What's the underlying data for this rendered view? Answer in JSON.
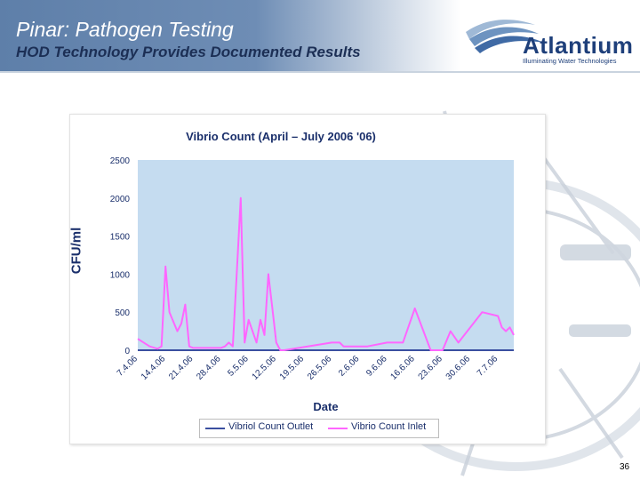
{
  "header": {
    "title": "Pinar: Pathogen Testing",
    "subtitle": "HOD Technology Provides Documented Results"
  },
  "logo": {
    "name": "Atlantium",
    "tagline": "Illuminating Water Technologies"
  },
  "page_number": "36",
  "colors": {
    "outlet": "#3a4fa0",
    "inlet": "#ff66ff",
    "plot_bg": "#c5dcf0",
    "header": "#5e7fa9"
  },
  "chart_data": {
    "type": "line",
    "title": "Vibrio Count (April – July 2006 '06)",
    "xlabel": "Date",
    "ylabel": "CFU/ml",
    "ylim": [
      0,
      2500
    ],
    "yticks": [
      0,
      500,
      1000,
      1500,
      2000,
      2500
    ],
    "grid": false,
    "legend_position": "bottom",
    "xticks": [
      "7.4.06",
      "14.4.06",
      "21.4.06",
      "28.4.06",
      "5.5.06",
      "12.5.06",
      "19.5.06",
      "26.5.06",
      "2.6.06",
      "9.6.06",
      "16.6.06",
      "23.6.06",
      "30.6.06",
      "7.7.06"
    ],
    "x": [
      "7.4.06",
      "10.4.06",
      "12.4.06",
      "13.4.06",
      "14.4.06",
      "15.4.06",
      "17.4.06",
      "18.4.06",
      "19.4.06",
      "20.4.06",
      "21.4.06",
      "28.4.06",
      "29.4.06",
      "30.4.06",
      "1.5.06",
      "2.5.06",
      "3.5.06",
      "4.5.06",
      "5.5.06",
      "6.5.06",
      "7.5.06",
      "8.5.06",
      "9.5.06",
      "10.5.06",
      "11.5.06",
      "12.5.06",
      "13.5.06",
      "14.5.06",
      "26.5.06",
      "27.5.06",
      "28.5.06",
      "29.5.06",
      "1.6.06",
      "2.6.06",
      "3.6.06",
      "4.6.06",
      "9.6.06",
      "13.6.06",
      "16.6.06",
      "20.6.06",
      "23.6.06",
      "25.6.06",
      "27.6.06",
      "3.7.06",
      "7.7.06",
      "8.7.06",
      "9.7.06",
      "10.7.06",
      "11.7.06"
    ],
    "series": [
      {
        "name": "Vibriol Count Outlet",
        "values": [
          0,
          0,
          0,
          0,
          0,
          0,
          0,
          0,
          0,
          0,
          0,
          0,
          0,
          0,
          0,
          0,
          0,
          0,
          0,
          0,
          0,
          0,
          0,
          0,
          0,
          0,
          0,
          0,
          0,
          0,
          0,
          0,
          0,
          0,
          0,
          0,
          0,
          0,
          0,
          0,
          0,
          0,
          0,
          0,
          0,
          0,
          0,
          0,
          0
        ]
      },
      {
        "name": "Vibrio Count Inlet",
        "values": [
          150,
          50,
          20,
          50,
          1100,
          500,
          250,
          350,
          600,
          50,
          30,
          30,
          50,
          100,
          50,
          1000,
          2000,
          100,
          400,
          250,
          100,
          400,
          200,
          1000,
          550,
          100,
          0,
          0,
          100,
          100,
          100,
          50,
          50,
          50,
          50,
          50,
          100,
          100,
          550,
          0,
          0,
          250,
          100,
          500,
          450,
          300,
          250,
          300,
          200
        ]
      }
    ]
  }
}
